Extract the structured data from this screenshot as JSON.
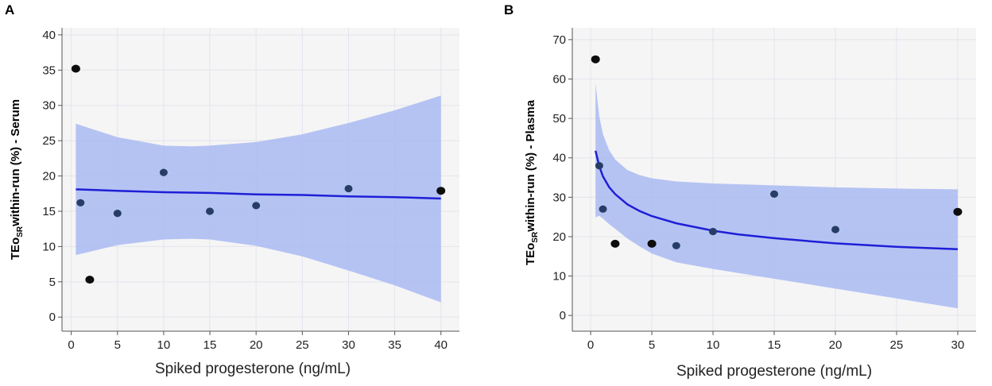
{
  "chart_data": [
    {
      "panel": "A",
      "type": "scatter",
      "xlabel": "Spiked progesterone (ng/mL)",
      "ylabel_prefix": "TEo",
      "ylabel_sub": "SR",
      "ylabel_suffix": "within-run (%) - Serum",
      "xlim": [
        -1,
        42
      ],
      "ylim": [
        -2,
        41
      ],
      "xticks": [
        0,
        5,
        10,
        15,
        20,
        25,
        30,
        35,
        40
      ],
      "yticks": [
        0,
        5,
        10,
        15,
        20,
        25,
        30,
        35,
        40
      ],
      "points": [
        {
          "x": 0.5,
          "y": 35.2,
          "outlier": true
        },
        {
          "x": 1,
          "y": 16.2,
          "outlier": false
        },
        {
          "x": 2,
          "y": 5.3,
          "outlier": true
        },
        {
          "x": 5,
          "y": 14.7,
          "outlier": false
        },
        {
          "x": 10,
          "y": 20.5,
          "outlier": false
        },
        {
          "x": 15,
          "y": 15.0,
          "outlier": false
        },
        {
          "x": 20,
          "y": 15.8,
          "outlier": false
        },
        {
          "x": 30,
          "y": 18.2,
          "outlier": false
        },
        {
          "x": 40,
          "y": 17.9,
          "outlier": true
        }
      ],
      "fit": {
        "x": [
          0.5,
          5,
          10,
          15,
          20,
          25,
          30,
          35,
          40
        ],
        "y": [
          18.1,
          17.9,
          17.7,
          17.6,
          17.4,
          17.3,
          17.1,
          17.0,
          16.8
        ]
      },
      "band": {
        "x": [
          0.5,
          5,
          10,
          13,
          15,
          20,
          25,
          30,
          35,
          40
        ],
        "upper": [
          27.4,
          25.5,
          24.3,
          24.2,
          24.3,
          24.8,
          25.9,
          27.5,
          29.3,
          31.4
        ],
        "lower": [
          8.8,
          10.2,
          11.0,
          11.1,
          11.0,
          10.1,
          8.6,
          6.6,
          4.5,
          2.1
        ]
      }
    },
    {
      "panel": "B",
      "type": "scatter",
      "xlabel": "Spiked progesterone (ng/mL)",
      "ylabel_prefix": "TEo",
      "ylabel_sub": "SR",
      "ylabel_suffix": "within-run (%) - Plasma",
      "xlim": [
        -1.5,
        31.5
      ],
      "ylim": [
        -4,
        73
      ],
      "xticks": [
        0,
        5,
        10,
        15,
        20,
        25,
        30
      ],
      "yticks": [
        0,
        10,
        20,
        30,
        40,
        50,
        60,
        70
      ],
      "points": [
        {
          "x": 0.4,
          "y": 65.0,
          "outlier": true
        },
        {
          "x": 0.7,
          "y": 38.0,
          "outlier": false
        },
        {
          "x": 1,
          "y": 27.0,
          "outlier": false
        },
        {
          "x": 2,
          "y": 18.2,
          "outlier": true
        },
        {
          "x": 5,
          "y": 18.2,
          "outlier": true
        },
        {
          "x": 7,
          "y": 17.7,
          "outlier": false
        },
        {
          "x": 10,
          "y": 21.3,
          "outlier": false
        },
        {
          "x": 15,
          "y": 30.8,
          "outlier": false
        },
        {
          "x": 20,
          "y": 21.8,
          "outlier": false
        },
        {
          "x": 30,
          "y": 26.3,
          "outlier": true
        }
      ],
      "fit": {
        "x": [
          0.4,
          0.7,
          1,
          1.5,
          2,
          3,
          4,
          5,
          7,
          10,
          12,
          15,
          20,
          25,
          30
        ],
        "y": [
          41.8,
          37.9,
          35.3,
          32.6,
          30.8,
          28.2,
          26.5,
          25.2,
          23.4,
          21.5,
          20.6,
          19.6,
          18.3,
          17.4,
          16.8
        ]
      },
      "band": {
        "x": [
          0.4,
          0.7,
          1,
          1.5,
          2,
          3,
          4,
          5,
          7,
          10,
          15,
          20,
          25,
          30
        ],
        "upper": [
          58.8,
          50.5,
          46.0,
          42.0,
          39.6,
          36.9,
          35.6,
          34.8,
          34.0,
          33.5,
          33.0,
          32.5,
          32.2,
          32.0
        ],
        "lower": [
          24.9,
          25.3,
          24.6,
          23.2,
          22.0,
          19.5,
          17.5,
          15.7,
          13.5,
          11.8,
          9.3,
          6.8,
          4.3,
          1.8
        ]
      }
    }
  ],
  "colors": {
    "panel_bg": "#f5f5f5",
    "grid": "#e3e4ee",
    "band": "#a9baf2",
    "fit_line": "#1f1fd6",
    "point": "#273d66",
    "outlier_point": "#0d0d0d",
    "axis": "#555555"
  }
}
